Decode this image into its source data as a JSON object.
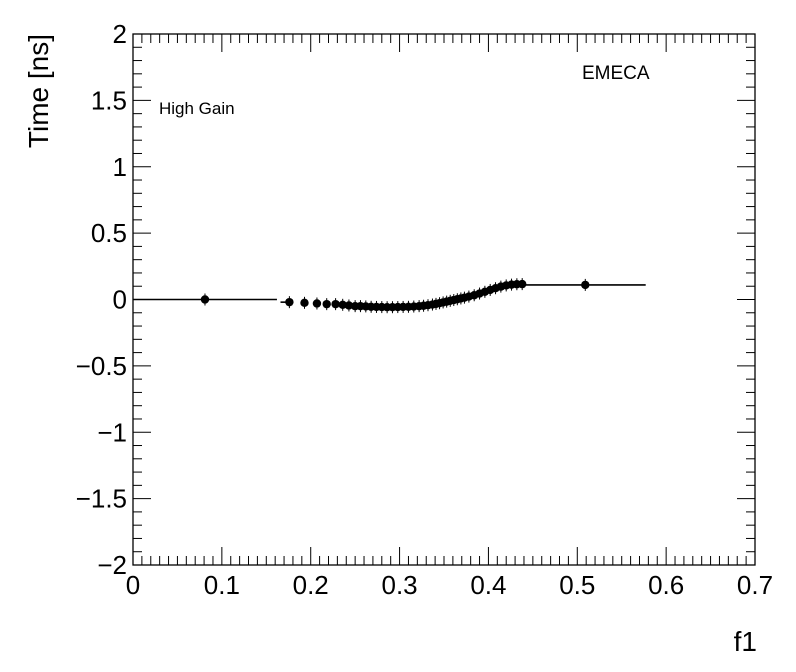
{
  "chart_data": {
    "type": "scatter",
    "title": "",
    "xlabel": "f1",
    "ylabel": "Time [ns]",
    "xlim": [
      0,
      0.7
    ],
    "ylim": [
      -2,
      2
    ],
    "x_ticks": [
      0,
      0.1,
      0.2,
      0.3,
      0.4,
      0.5,
      0.6,
      0.7
    ],
    "x_tick_labels": [
      "0",
      "0.1",
      "0.2",
      "0.3",
      "0.4",
      "0.5",
      "0.6",
      "0.7"
    ],
    "y_ticks": [
      -2,
      -1.5,
      -1,
      -0.5,
      0,
      0.5,
      1,
      1.5,
      2
    ],
    "y_tick_labels": [
      "−2",
      "−1.5",
      "−1",
      "−0.5",
      "0",
      "0.5",
      "1",
      "1.5",
      "2"
    ],
    "annotations": [
      {
        "text": "High Gain",
        "position": "top-left"
      },
      {
        "text": "EMECA",
        "position": "top-right"
      }
    ],
    "grid": false,
    "legend": "none",
    "marker_color": "#000000",
    "series": [
      {
        "points": [
          {
            "x": 0.081,
            "y": 0.0,
            "xerr": [
              0.081,
              0.081
            ]
          },
          {
            "x": 0.176,
            "y": -0.02,
            "xerr": [
              0.01,
              0.003
            ]
          },
          {
            "x": 0.193,
            "y": -0.025,
            "xerr": [
              0.004,
              0.004
            ]
          },
          {
            "x": 0.207,
            "y": -0.03,
            "xerr": [
              0.003,
              0.003
            ]
          },
          {
            "x": 0.218,
            "y": -0.035,
            "xerr": [
              0.002,
              0.002
            ]
          },
          {
            "x": 0.228,
            "y": -0.035,
            "xerr": [
              0.002,
              0.002
            ]
          },
          {
            "x": 0.236,
            "y": -0.04,
            "xerr": [
              0.002,
              0.002
            ]
          },
          {
            "x": 0.243,
            "y": -0.045,
            "xerr": [
              0.002,
              0.002
            ]
          },
          {
            "x": 0.25,
            "y": -0.05,
            "xerr": [
              0.002,
              0.002
            ]
          },
          {
            "x": 0.256,
            "y": -0.05,
            "xerr": [
              0.002,
              0.002
            ]
          },
          {
            "x": 0.262,
            "y": -0.052,
            "xerr": [
              0.002,
              0.002
            ]
          },
          {
            "x": 0.268,
            "y": -0.055,
            "xerr": [
              0.002,
              0.002
            ]
          },
          {
            "x": 0.274,
            "y": -0.056,
            "xerr": [
              0.002,
              0.002
            ]
          },
          {
            "x": 0.28,
            "y": -0.057,
            "xerr": [
              0.002,
              0.002
            ]
          },
          {
            "x": 0.286,
            "y": -0.058,
            "xerr": [
              0.002,
              0.002
            ]
          },
          {
            "x": 0.292,
            "y": -0.058,
            "xerr": [
              0.002,
              0.002
            ]
          },
          {
            "x": 0.298,
            "y": -0.057,
            "xerr": [
              0.002,
              0.002
            ]
          },
          {
            "x": 0.304,
            "y": -0.056,
            "xerr": [
              0.002,
              0.002
            ]
          },
          {
            "x": 0.31,
            "y": -0.055,
            "xerr": [
              0.002,
              0.002
            ]
          },
          {
            "x": 0.316,
            "y": -0.053,
            "xerr": [
              0.002,
              0.002
            ]
          },
          {
            "x": 0.322,
            "y": -0.05,
            "xerr": [
              0.002,
              0.002
            ]
          },
          {
            "x": 0.327,
            "y": -0.047,
            "xerr": [
              0.002,
              0.002
            ]
          },
          {
            "x": 0.332,
            "y": -0.043,
            "xerr": [
              0.002,
              0.002
            ]
          },
          {
            "x": 0.337,
            "y": -0.038,
            "xerr": [
              0.002,
              0.002
            ]
          },
          {
            "x": 0.341,
            "y": -0.033,
            "xerr": [
              0.002,
              0.002
            ]
          },
          {
            "x": 0.345,
            "y": -0.028,
            "xerr": [
              0.002,
              0.002
            ]
          },
          {
            "x": 0.349,
            "y": -0.022,
            "xerr": [
              0.002,
              0.002
            ]
          },
          {
            "x": 0.353,
            "y": -0.016,
            "xerr": [
              0.002,
              0.002
            ]
          },
          {
            "x": 0.357,
            "y": -0.01,
            "xerr": [
              0.002,
              0.002
            ]
          },
          {
            "x": 0.361,
            "y": -0.004,
            "xerr": [
              0.002,
              0.002
            ]
          },
          {
            "x": 0.365,
            "y": 0.002,
            "xerr": [
              0.002,
              0.002
            ]
          },
          {
            "x": 0.369,
            "y": 0.008,
            "xerr": [
              0.002,
              0.002
            ]
          },
          {
            "x": 0.373,
            "y": 0.014,
            "xerr": [
              0.002,
              0.002
            ]
          },
          {
            "x": 0.378,
            "y": 0.022,
            "xerr": [
              0.002,
              0.002
            ]
          },
          {
            "x": 0.384,
            "y": 0.032,
            "xerr": [
              0.002,
              0.002
            ]
          },
          {
            "x": 0.39,
            "y": 0.045,
            "xerr": [
              0.002,
              0.002
            ]
          },
          {
            "x": 0.396,
            "y": 0.058,
            "xerr": [
              0.002,
              0.002
            ]
          },
          {
            "x": 0.402,
            "y": 0.072,
            "xerr": [
              0.002,
              0.002
            ]
          },
          {
            "x": 0.408,
            "y": 0.085,
            "xerr": [
              0.002,
              0.002
            ]
          },
          {
            "x": 0.414,
            "y": 0.097,
            "xerr": [
              0.002,
              0.002
            ]
          },
          {
            "x": 0.42,
            "y": 0.106,
            "xerr": [
              0.002,
              0.002
            ]
          },
          {
            "x": 0.426,
            "y": 0.112,
            "xerr": [
              0.002,
              0.002
            ]
          },
          {
            "x": 0.432,
            "y": 0.115,
            "xerr": [
              0.002,
              0.002
            ]
          },
          {
            "x": 0.438,
            "y": 0.116,
            "xerr": [
              0.002,
              0.002
            ]
          },
          {
            "x": 0.509,
            "y": 0.11,
            "xerr": [
              0.071,
              0.068
            ]
          }
        ]
      }
    ]
  }
}
